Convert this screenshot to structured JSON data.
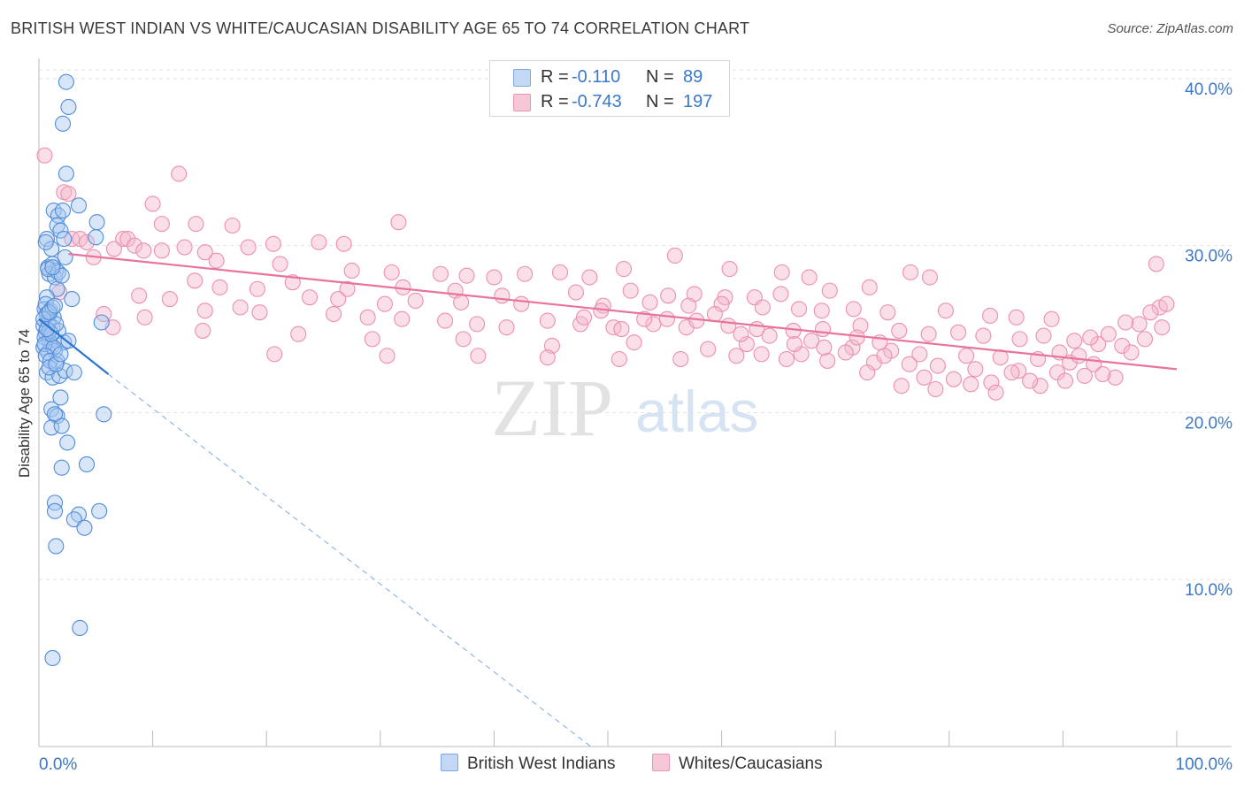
{
  "title": "BRITISH WEST INDIAN VS WHITE/CAUCASIAN DISABILITY AGE 65 TO 74 CORRELATION CHART",
  "source": "Source: ZipAtlas.com",
  "watermark": {
    "zip": "ZIP",
    "atlas": "atlas"
  },
  "legend": {
    "r_label": "R =",
    "n_label": "N =",
    "rows": [
      {
        "name": "British West Indians",
        "r": "-0.110",
        "n": "89"
      },
      {
        "name": "Whites/Caucasians",
        "r": "-0.743",
        "n": "197"
      }
    ]
  },
  "colors": {
    "blue": "#2f74d0",
    "blue_fill": "#a9c8f0",
    "pink": "#e8739c",
    "pink_fill": "#f4b8cd",
    "value_text": "#3b78c8",
    "axis_text": "#3b78c8"
  },
  "chart_data": {
    "type": "scatter",
    "title": "BRITISH WEST INDIAN VS WHITE/CAUCASIAN DISABILITY AGE 65 TO 74 CORRELATION CHART",
    "xlabel": "",
    "ylabel": "Disability Age 65 to 74",
    "xlim": [
      0,
      100
    ],
    "ylim": [
      0,
      41
    ],
    "x_tick_labels": [
      "0.0%",
      "100.0%"
    ],
    "y_ticks": [
      {
        "value": 10,
        "label": "10.0%"
      },
      {
        "value": 20,
        "label": "20.0%"
      },
      {
        "value": 30,
        "label": "30.0%"
      },
      {
        "value": 40,
        "label": "40.0%"
      }
    ],
    "grid": true,
    "series": [
      {
        "name": "British West Indians",
        "r": -0.11,
        "n": 89,
        "trend": {
          "x0": 0,
          "y0": 25.6,
          "x1": 6.1,
          "y1": 22.3,
          "dash_x1": 48.5,
          "dash_y1": 0
        },
        "points": [
          [
            2.4,
            39.8
          ],
          [
            2.6,
            38.3
          ],
          [
            2.1,
            37.3
          ],
          [
            2.4,
            34.3
          ],
          [
            1.3,
            32.1
          ],
          [
            1.7,
            31.8
          ],
          [
            2.1,
            32.1
          ],
          [
            3.5,
            32.4
          ],
          [
            1.6,
            31.2
          ],
          [
            5.1,
            31.4
          ],
          [
            1.9,
            30.9
          ],
          [
            0.7,
            30.4
          ],
          [
            2.2,
            30.4
          ],
          [
            5.0,
            30.5
          ],
          [
            1.1,
            29.8
          ],
          [
            2.3,
            29.3
          ],
          [
            0.8,
            28.7
          ],
          [
            1.2,
            28.9
          ],
          [
            1.5,
            28.5
          ],
          [
            0.9,
            28.3
          ],
          [
            1.4,
            28.1
          ],
          [
            2.9,
            26.8
          ],
          [
            1.6,
            27.4
          ],
          [
            0.7,
            26.9
          ],
          [
            0.5,
            26.2
          ],
          [
            0.9,
            25.9
          ],
          [
            1.3,
            25.7
          ],
          [
            0.8,
            25.4
          ],
          [
            1.2,
            25.1
          ],
          [
            1.7,
            24.9
          ],
          [
            0.4,
            25.2
          ],
          [
            0.6,
            24.8
          ],
          [
            0.5,
            24.5
          ],
          [
            0.9,
            24.3
          ],
          [
            1.1,
            24.0
          ],
          [
            2.2,
            24.2
          ],
          [
            0.4,
            23.9
          ],
          [
            0.8,
            23.6
          ],
          [
            1.4,
            23.7
          ],
          [
            1.6,
            23.1
          ],
          [
            0.7,
            22.4
          ],
          [
            1.2,
            22.1
          ],
          [
            1.8,
            22.2
          ],
          [
            2.3,
            22.5
          ],
          [
            3.1,
            22.4
          ],
          [
            5.5,
            25.4
          ],
          [
            1.9,
            20.9
          ],
          [
            1.1,
            20.2
          ],
          [
            1.6,
            19.8
          ],
          [
            1.4,
            19.9
          ],
          [
            5.7,
            19.9
          ],
          [
            1.1,
            19.1
          ],
          [
            2.0,
            19.2
          ],
          [
            2.5,
            18.2
          ],
          [
            2.0,
            16.7
          ],
          [
            4.2,
            16.9
          ],
          [
            1.4,
            14.6
          ],
          [
            1.4,
            14.1
          ],
          [
            3.5,
            13.9
          ],
          [
            5.3,
            14.1
          ],
          [
            3.1,
            13.6
          ],
          [
            4.0,
            13.1
          ],
          [
            1.5,
            12.0
          ],
          [
            3.6,
            7.1
          ],
          [
            1.2,
            5.3
          ],
          [
            0.6,
            26.5
          ],
          [
            1.0,
            26.1
          ],
          [
            0.7,
            25.9
          ],
          [
            1.2,
            26.3
          ],
          [
            0.9,
            24.9
          ],
          [
            0.5,
            24.1
          ],
          [
            1.3,
            23.9
          ],
          [
            0.6,
            23.4
          ],
          [
            1.0,
            23.1
          ],
          [
            0.9,
            22.7
          ],
          [
            1.5,
            22.9
          ],
          [
            0.8,
            28.6
          ],
          [
            1.7,
            28.4
          ],
          [
            2.0,
            28.2
          ],
          [
            1.1,
            24.7
          ],
          [
            0.4,
            25.6
          ],
          [
            0.7,
            25.0
          ],
          [
            1.5,
            25.3
          ],
          [
            2.6,
            24.3
          ],
          [
            1.9,
            23.5
          ],
          [
            0.9,
            26.0
          ],
          [
            1.4,
            26.4
          ],
          [
            1.2,
            28.7
          ],
          [
            0.6,
            30.2
          ]
        ]
      },
      {
        "name": "Whites/Caucasians",
        "r": -0.743,
        "n": 197,
        "trend": {
          "x0": 2.6,
          "y0": 29.5,
          "x1": 100,
          "y1": 22.6
        },
        "points": [
          [
            0.5,
            35.4
          ],
          [
            2.2,
            33.2
          ],
          [
            2.6,
            33.1
          ],
          [
            12.3,
            34.3
          ],
          [
            10.0,
            32.5
          ],
          [
            10.8,
            31.3
          ],
          [
            13.8,
            31.3
          ],
          [
            17.0,
            31.2
          ],
          [
            31.6,
            31.4
          ],
          [
            2.9,
            30.4
          ],
          [
            3.6,
            30.4
          ],
          [
            4.2,
            30.2
          ],
          [
            7.4,
            30.4
          ],
          [
            7.8,
            30.4
          ],
          [
            6.6,
            29.8
          ],
          [
            8.4,
            30.0
          ],
          [
            9.2,
            29.7
          ],
          [
            10.8,
            29.7
          ],
          [
            12.8,
            29.9
          ],
          [
            14.6,
            29.6
          ],
          [
            18.4,
            29.9
          ],
          [
            20.6,
            30.1
          ],
          [
            24.6,
            30.2
          ],
          [
            26.8,
            30.1
          ],
          [
            4.8,
            29.3
          ],
          [
            15.6,
            29.1
          ],
          [
            21.2,
            28.9
          ],
          [
            27.5,
            28.5
          ],
          [
            31.0,
            28.4
          ],
          [
            35.3,
            28.3
          ],
          [
            37.6,
            28.2
          ],
          [
            40.0,
            28.1
          ],
          [
            42.7,
            28.3
          ],
          [
            45.8,
            28.4
          ],
          [
            48.4,
            28.1
          ],
          [
            51.4,
            28.6
          ],
          [
            55.9,
            29.4
          ],
          [
            60.7,
            28.6
          ],
          [
            65.3,
            28.4
          ],
          [
            67.7,
            28.1
          ],
          [
            76.6,
            28.4
          ],
          [
            78.3,
            28.1
          ],
          [
            98.2,
            28.9
          ],
          [
            13.7,
            27.9
          ],
          [
            15.9,
            27.5
          ],
          [
            19.2,
            27.4
          ],
          [
            22.3,
            27.8
          ],
          [
            27.1,
            27.4
          ],
          [
            32.0,
            27.5
          ],
          [
            36.6,
            27.3
          ],
          [
            40.7,
            27.0
          ],
          [
            47.2,
            27.2
          ],
          [
            52.0,
            27.3
          ],
          [
            55.3,
            27.0
          ],
          [
            57.6,
            27.1
          ],
          [
            60.3,
            26.9
          ],
          [
            62.9,
            26.9
          ],
          [
            65.2,
            27.1
          ],
          [
            69.5,
            27.3
          ],
          [
            73.0,
            27.5
          ],
          [
            8.8,
            27.0
          ],
          [
            11.5,
            26.8
          ],
          [
            17.7,
            26.3
          ],
          [
            23.8,
            26.9
          ],
          [
            26.3,
            26.8
          ],
          [
            30.4,
            26.5
          ],
          [
            33.1,
            26.7
          ],
          [
            37.1,
            26.6
          ],
          [
            42.4,
            26.5
          ],
          [
            49.6,
            26.4
          ],
          [
            53.7,
            26.6
          ],
          [
            57.1,
            26.4
          ],
          [
            60.0,
            26.5
          ],
          [
            63.6,
            26.3
          ],
          [
            66.8,
            26.2
          ],
          [
            68.8,
            26.1
          ],
          [
            71.6,
            26.2
          ],
          [
            74.6,
            26.0
          ],
          [
            79.7,
            26.1
          ],
          [
            83.6,
            25.8
          ],
          [
            85.9,
            25.7
          ],
          [
            89.0,
            25.6
          ],
          [
            1.8,
            27.2
          ],
          [
            5.7,
            25.9
          ],
          [
            9.3,
            25.7
          ],
          [
            14.6,
            26.1
          ],
          [
            19.4,
            26.0
          ],
          [
            25.9,
            25.9
          ],
          [
            28.9,
            25.7
          ],
          [
            31.9,
            25.6
          ],
          [
            35.7,
            25.5
          ],
          [
            38.5,
            25.3
          ],
          [
            41.1,
            25.1
          ],
          [
            44.7,
            25.5
          ],
          [
            47.6,
            25.3
          ],
          [
            50.5,
            25.1
          ],
          [
            54.0,
            25.3
          ],
          [
            56.9,
            25.1
          ],
          [
            60.6,
            25.2
          ],
          [
            63.1,
            25.0
          ],
          [
            66.3,
            24.9
          ],
          [
            68.9,
            25.0
          ],
          [
            72.2,
            25.2
          ],
          [
            75.6,
            24.9
          ],
          [
            78.2,
            24.7
          ],
          [
            80.8,
            24.8
          ],
          [
            83.0,
            24.6
          ],
          [
            86.2,
            24.4
          ],
          [
            88.3,
            24.6
          ],
          [
            91.0,
            24.3
          ],
          [
            93.1,
            24.1
          ],
          [
            95.2,
            24.0
          ],
          [
            97.2,
            24.4
          ],
          [
            98.7,
            25.1
          ],
          [
            6.5,
            25.1
          ],
          [
            14.4,
            24.9
          ],
          [
            22.8,
            24.7
          ],
          [
            29.3,
            24.4
          ],
          [
            37.3,
            24.4
          ],
          [
            45.1,
            24.0
          ],
          [
            52.3,
            24.2
          ],
          [
            58.8,
            23.8
          ],
          [
            62.2,
            24.1
          ],
          [
            67.9,
            24.3
          ],
          [
            71.5,
            23.9
          ],
          [
            74.9,
            23.7
          ],
          [
            77.4,
            23.5
          ],
          [
            81.5,
            23.4
          ],
          [
            84.5,
            23.3
          ],
          [
            87.8,
            23.2
          ],
          [
            90.6,
            23.0
          ],
          [
            92.7,
            22.9
          ],
          [
            20.7,
            23.5
          ],
          [
            30.6,
            23.4
          ],
          [
            38.6,
            23.4
          ],
          [
            44.7,
            23.3
          ],
          [
            51.0,
            23.2
          ],
          [
            56.4,
            23.2
          ],
          [
            61.3,
            23.4
          ],
          [
            65.7,
            23.2
          ],
          [
            69.3,
            23.1
          ],
          [
            73.4,
            23.0
          ],
          [
            76.5,
            22.9
          ],
          [
            79.0,
            22.8
          ],
          [
            82.3,
            22.6
          ],
          [
            86.1,
            22.5
          ],
          [
            89.5,
            22.4
          ],
          [
            91.9,
            22.2
          ],
          [
            94.6,
            22.1
          ],
          [
            63.5,
            23.5
          ],
          [
            67.0,
            23.5
          ],
          [
            70.9,
            23.6
          ],
          [
            74.3,
            23.4
          ],
          [
            77.8,
            22.1
          ],
          [
            80.4,
            22.0
          ],
          [
            83.7,
            21.8
          ],
          [
            85.5,
            22.4
          ],
          [
            88.0,
            21.6
          ],
          [
            90.2,
            21.9
          ],
          [
            93.5,
            22.3
          ],
          [
            96.0,
            23.6
          ],
          [
            72.8,
            22.4
          ],
          [
            75.8,
            21.6
          ],
          [
            78.8,
            21.4
          ],
          [
            81.9,
            21.7
          ],
          [
            84.1,
            21.2
          ],
          [
            87.1,
            21.9
          ],
          [
            91.4,
            23.4
          ],
          [
            94.0,
            24.7
          ],
          [
            96.7,
            25.3
          ],
          [
            98.5,
            26.3
          ],
          [
            99.1,
            26.5
          ],
          [
            97.7,
            26.0
          ],
          [
            95.5,
            25.4
          ],
          [
            92.4,
            24.5
          ],
          [
            89.7,
            23.6
          ],
          [
            73.9,
            24.2
          ],
          [
            71.9,
            24.5
          ],
          [
            69.0,
            23.9
          ],
          [
            66.4,
            24.1
          ],
          [
            64.2,
            24.6
          ],
          [
            61.7,
            24.7
          ],
          [
            59.4,
            25.9
          ],
          [
            57.8,
            25.5
          ],
          [
            55.2,
            25.6
          ],
          [
            53.2,
            25.6
          ],
          [
            51.2,
            25.0
          ],
          [
            49.4,
            26.1
          ],
          [
            47.9,
            25.7
          ]
        ]
      }
    ]
  }
}
